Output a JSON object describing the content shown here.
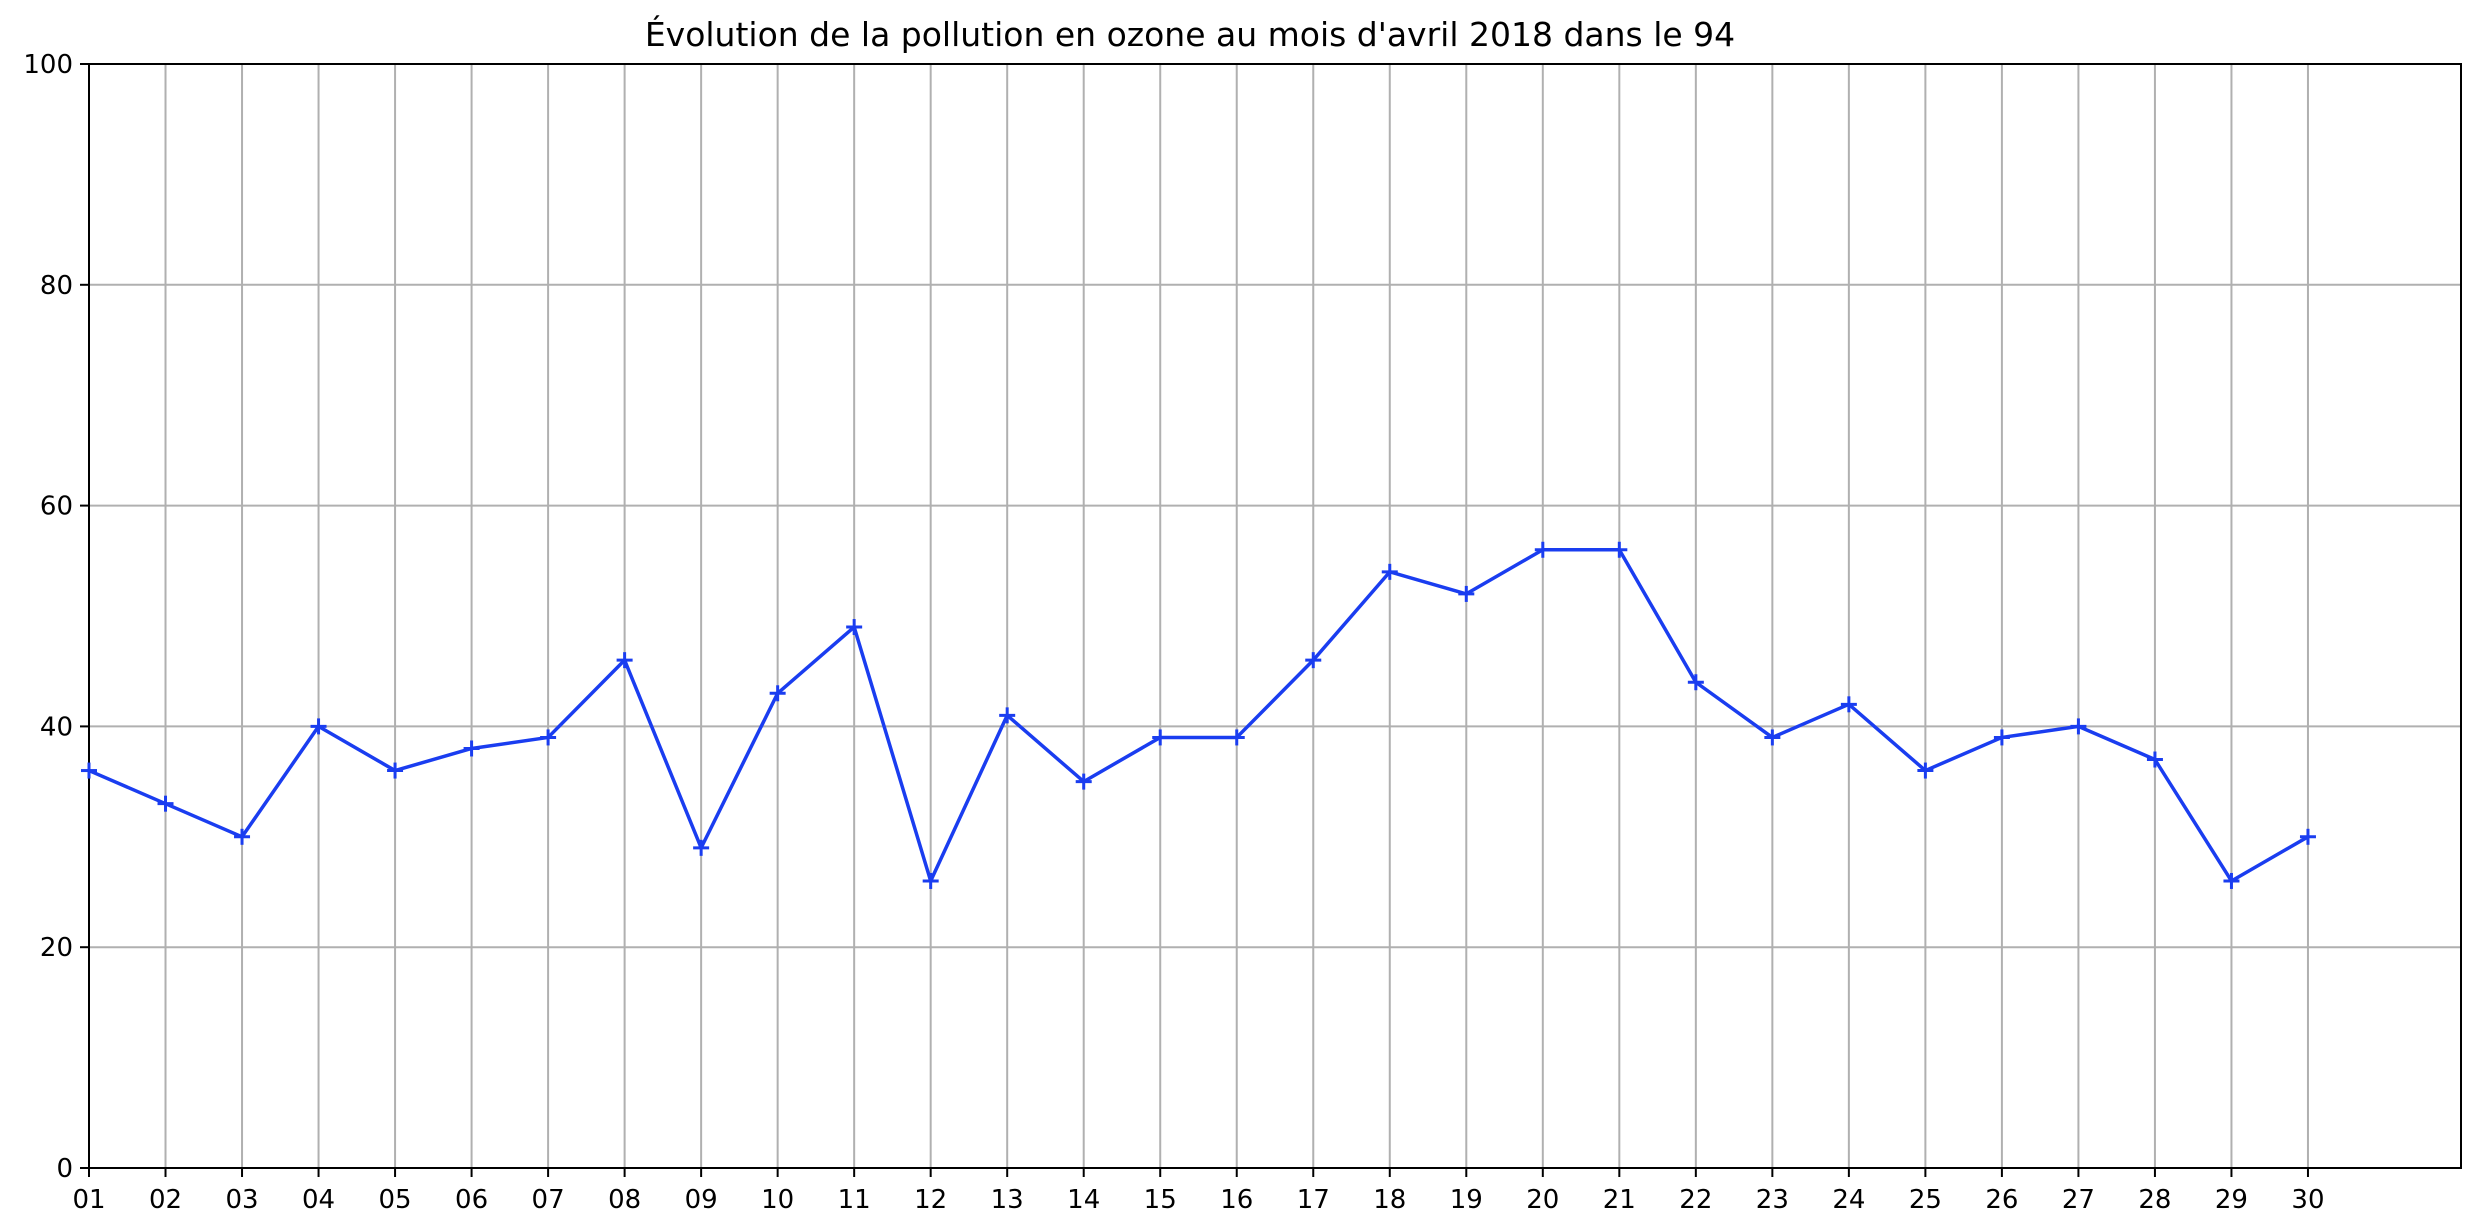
{
  "chart_data": {
    "type": "line",
    "title": "Évolution de la pollution en ozone au mois d'avril 2018 dans le 94",
    "xlabel": "",
    "ylabel": "",
    "categories": [
      "01",
      "02",
      "03",
      "04",
      "05",
      "06",
      "07",
      "08",
      "09",
      "10",
      "11",
      "12",
      "13",
      "14",
      "15",
      "16",
      "17",
      "18",
      "19",
      "20",
      "21",
      "22",
      "23",
      "24",
      "25",
      "26",
      "27",
      "28",
      "29",
      "30"
    ],
    "series": [
      {
        "values": [
          36,
          33,
          30,
          40,
          36,
          38,
          39,
          46,
          29,
          43,
          49,
          26,
          41,
          35,
          39,
          39,
          46,
          54,
          52,
          56,
          56,
          44,
          39,
          42,
          36,
          39,
          40,
          37,
          26,
          30
        ],
        "color": "#1a3df0",
        "marker": "plus"
      }
    ],
    "ylim": [
      0,
      100
    ],
    "yticks": [
      0,
      20,
      40,
      60,
      80,
      100
    ],
    "x_slots": 31,
    "grid": true,
    "legend": false
  }
}
